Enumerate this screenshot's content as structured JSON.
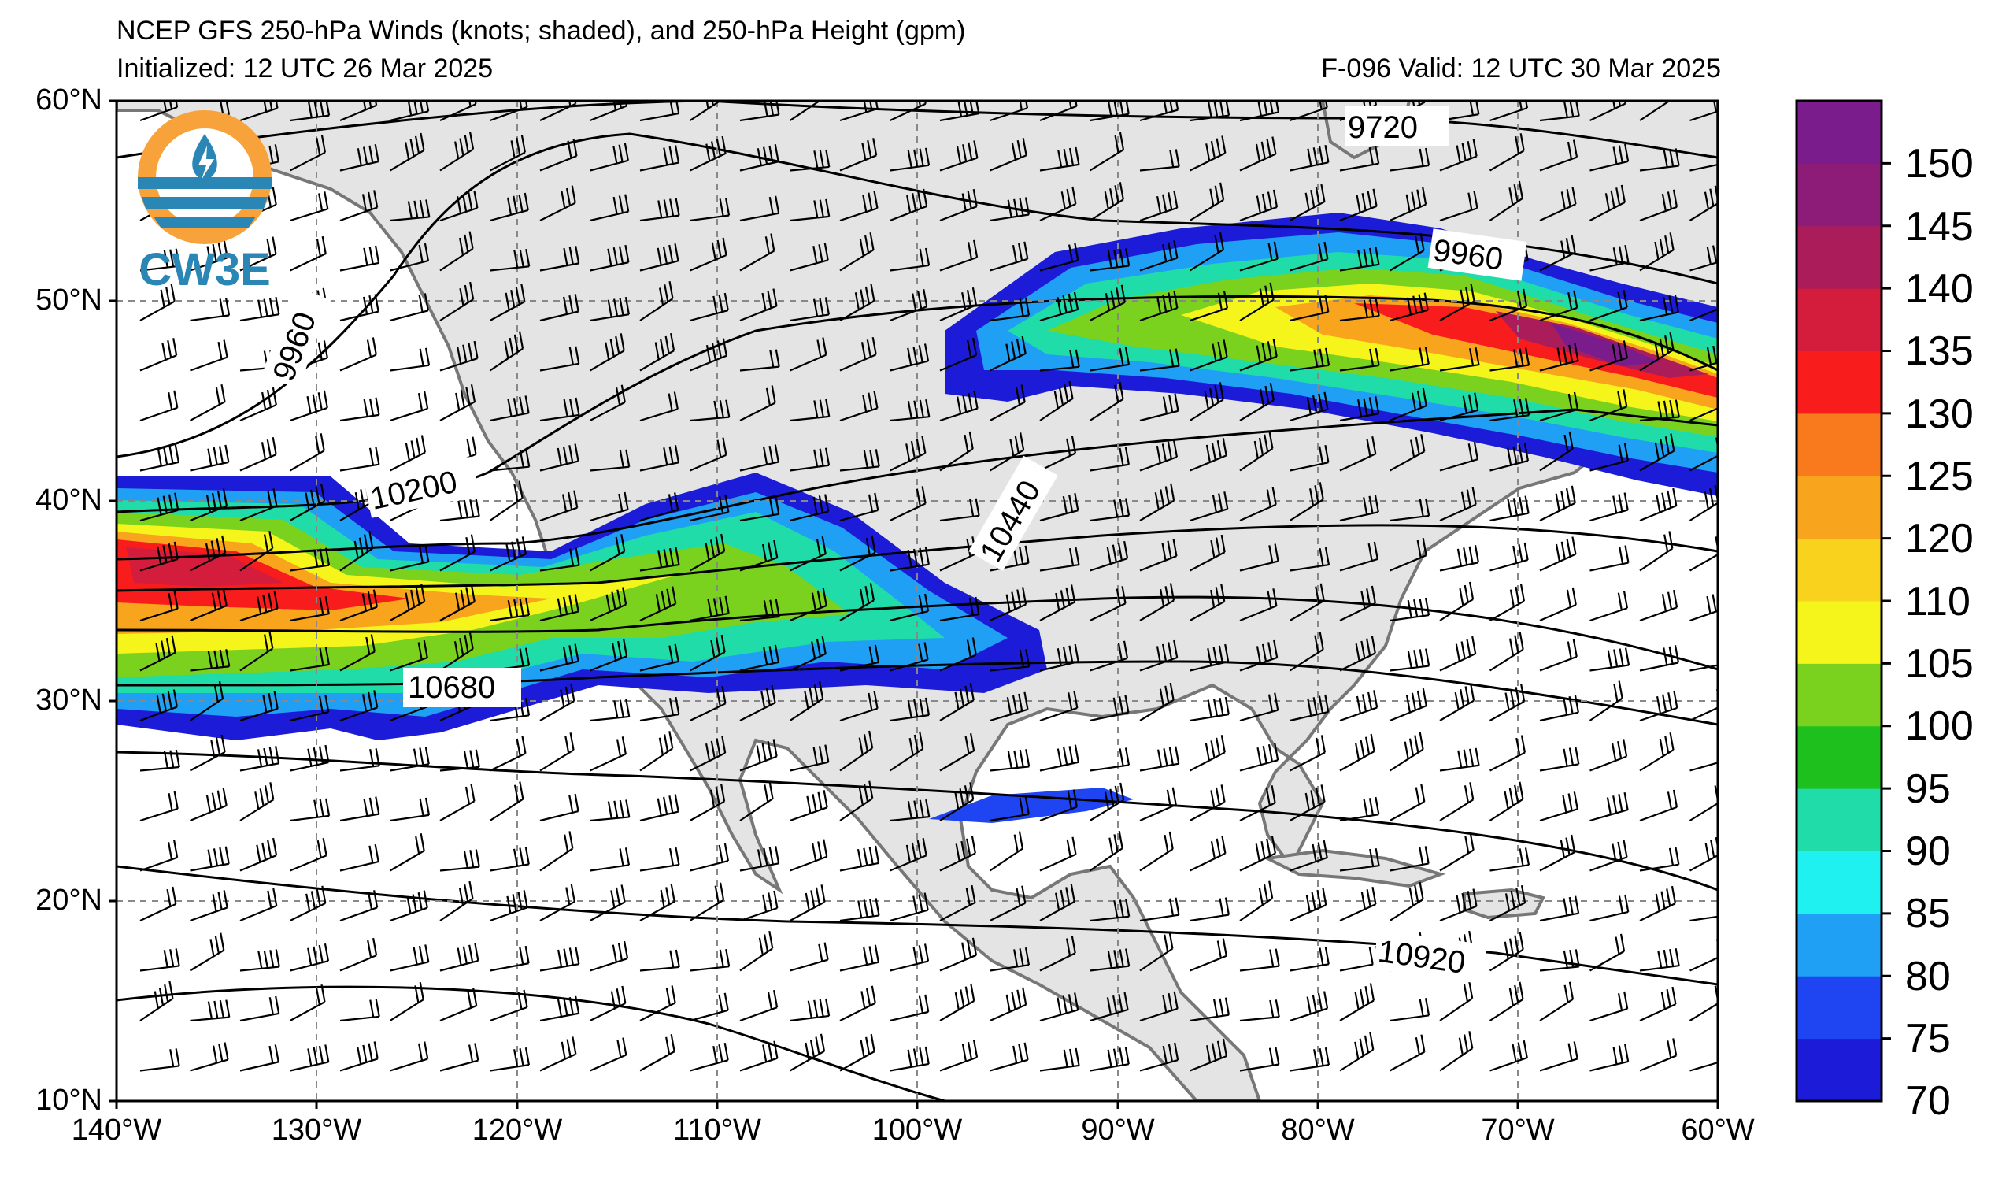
{
  "header": {
    "title": "NCEP GFS 250-hPa Winds (knots; shaded), and 250-hPa Height (gpm)",
    "initialized": "Initialized: 12 UTC 26 Mar 2025",
    "valid": "F-096  Valid: 12 UTC 30 Mar 2025"
  },
  "logo": {
    "text": "CW3E"
  },
  "map": {
    "lat_labels": [
      "60°N",
      "50°N",
      "40°N",
      "30°N",
      "20°N",
      "10°N"
    ],
    "lon_labels": [
      "140°W",
      "130°W",
      "120°W",
      "110°W",
      "100°W",
      "90°W",
      "80°W",
      "70°W",
      "60°W"
    ],
    "extent": {
      "lon": [
        -140,
        -60
      ],
      "lat": [
        10,
        60
      ]
    },
    "contour_labels": [
      "9720",
      "9960",
      "9960",
      "10200",
      "10440",
      "10680",
      "10920"
    ],
    "colors": {
      "land": "#e4e4e4",
      "ocean": "#ffffff",
      "coast": "#777777",
      "contour": "#000000"
    }
  },
  "colorbar": {
    "ticks": [
      "150",
      "145",
      "140",
      "135",
      "130",
      "125",
      "120",
      "110",
      "105",
      "100",
      "95",
      "90",
      "85",
      "80",
      "75",
      "70"
    ],
    "levels": [
      70,
      75,
      80,
      85,
      90,
      95,
      100,
      105,
      110,
      120,
      125,
      130,
      135,
      140,
      145,
      150
    ],
    "colors": [
      "#1c1cd8",
      "#1f44f2",
      "#1fa0f5",
      "#1ff0f0",
      "#1fdca8",
      "#1ec01e",
      "#7ad21e",
      "#f5f51c",
      "#f8d21c",
      "#f8a41c",
      "#f87a1c",
      "#f81c1c",
      "#d41c3c",
      "#aa1c5a",
      "#8c1c78",
      "#7a1c8c"
    ]
  }
}
